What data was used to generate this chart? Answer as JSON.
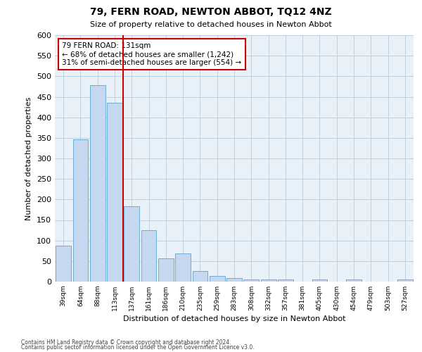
{
  "title": "79, FERN ROAD, NEWTON ABBOT, TQ12 4NZ",
  "subtitle": "Size of property relative to detached houses in Newton Abbot",
  "xlabel": "Distribution of detached houses by size in Newton Abbot",
  "ylabel": "Number of detached properties",
  "bar_color": "#c5d8f0",
  "bar_edge_color": "#6baed6",
  "background_color": "#e8f0f8",
  "grid_color": "#c0cfe0",
  "categories": [
    "39sqm",
    "64sqm",
    "88sqm",
    "113sqm",
    "137sqm",
    "161sqm",
    "186sqm",
    "210sqm",
    "235sqm",
    "259sqm",
    "283sqm",
    "308sqm",
    "332sqm",
    "357sqm",
    "381sqm",
    "405sqm",
    "430sqm",
    "454sqm",
    "479sqm",
    "503sqm",
    "527sqm"
  ],
  "values": [
    88,
    347,
    478,
    435,
    183,
    125,
    57,
    68,
    25,
    13,
    8,
    5,
    5,
    5,
    0,
    5,
    0,
    5,
    0,
    0,
    5
  ],
  "vline_pos": 3.5,
  "vline_color": "#cc0000",
  "annotation_text": "79 FERN ROAD: 131sqm\n← 68% of detached houses are smaller (1,242)\n31% of semi-detached houses are larger (554) →",
  "annotation_box_color": "#ffffff",
  "annotation_box_edge": "#cc0000",
  "ylim": [
    0,
    600
  ],
  "yticks": [
    0,
    50,
    100,
    150,
    200,
    250,
    300,
    350,
    400,
    450,
    500,
    550,
    600
  ],
  "footer_line1": "Contains HM Land Registry data © Crown copyright and database right 2024.",
  "footer_line2": "Contains public sector information licensed under the Open Government Licence v3.0."
}
